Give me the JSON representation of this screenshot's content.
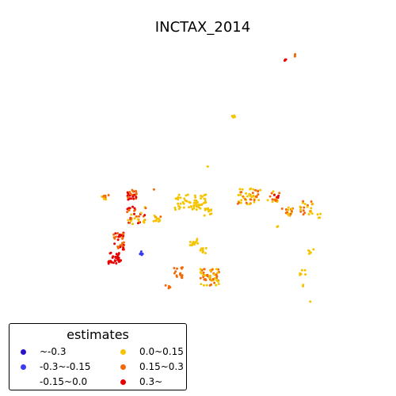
{
  "title": "INCTAX_2014",
  "legend": {
    "title": "estimates",
    "items": [
      {
        "label": "~-0.3",
        "color": "#2a12c9"
      },
      {
        "label": "-0.3~-0.15",
        "color": "#3b3bf0"
      },
      {
        "label": "-0.15~0.0",
        "color": "#ffffff"
      },
      {
        "label": "0.0~0.15",
        "color": "#f5c400"
      },
      {
        "label": "0.15~0.3",
        "color": "#f26a0a"
      },
      {
        "label": "0.3~",
        "color": "#e60000"
      }
    ]
  }
}
